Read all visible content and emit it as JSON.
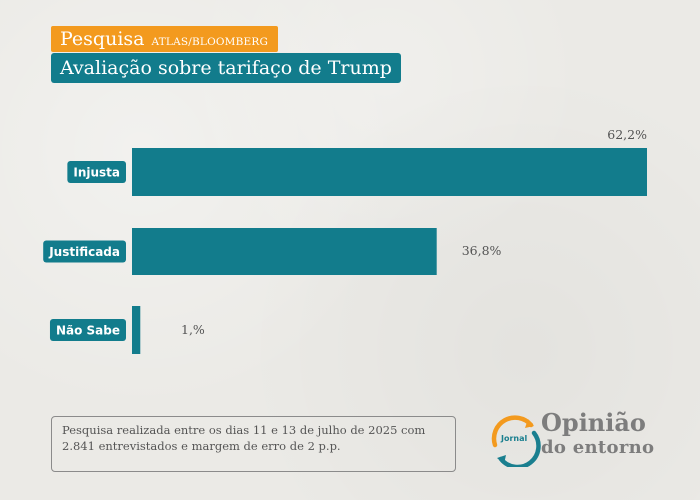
{
  "header": {
    "tag": "Pesquisa",
    "source": "ATLAS/BLOOMBERG",
    "title": "Avaliação sobre tarifaço de Trump"
  },
  "chart_data": {
    "type": "bar",
    "orientation": "horizontal",
    "categories": [
      "Injusta",
      "Justificada",
      "Não Sabe"
    ],
    "values": [
      62.2,
      36.8,
      1.0
    ],
    "value_labels": [
      "62,2%",
      "36,8%",
      "1,%"
    ],
    "grid": false,
    "legend": "none"
  },
  "footnote": "Pesquisa realizada entre os dias 11 e 13 de julho de 2025 com 2.841 entrevistados e margem de erro de 2 p.p.",
  "logo": {
    "small": "Jornal",
    "line1": "Opinião",
    "line2": "do entorno"
  },
  "colors": {
    "bar": "#127c8c",
    "label_bg": "#127c8c",
    "tag_bg": "#f39a1e",
    "logo_orange": "#f39a1e",
    "logo_teal": "#1a7f8f"
  }
}
